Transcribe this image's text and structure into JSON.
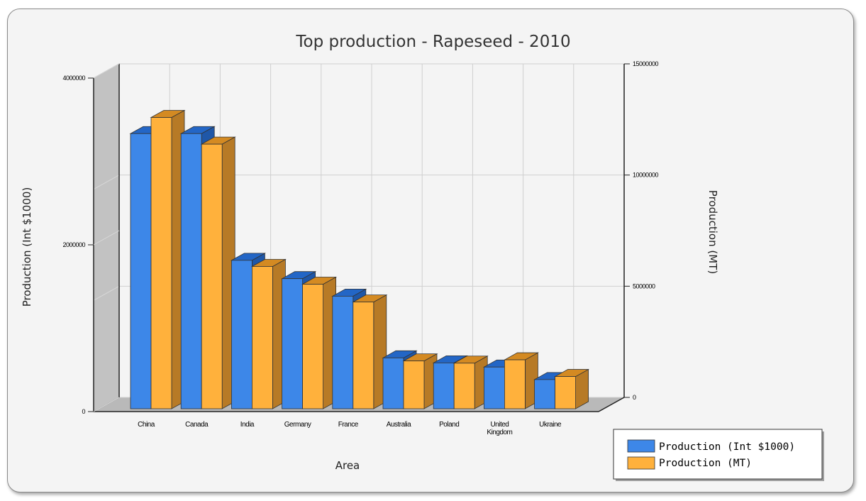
{
  "colors": {
    "series1_front": "#3d87e8",
    "series1_top": "#2366c6",
    "series1_side": "#1f57a8",
    "series2_front": "#ffb13c",
    "series2_top": "#d48a22",
    "series2_side": "#b77a26",
    "wall": "#c2c2c2",
    "floor": "#b9b9b9",
    "grid": "#cfcfcf"
  },
  "chart_data": {
    "type": "bar",
    "style": "3d-clustered",
    "title": "Top production - Rapeseed - 2010",
    "xlabel": "Area",
    "ylabel_left": "Production (Int $1000)",
    "ylabel_right": "Production (MT)",
    "categories": [
      "China",
      "Canada",
      "India",
      "Germany",
      "France",
      "Australia",
      "Poland",
      "United Kingdom",
      "Ukraine"
    ],
    "category_lines": [
      [
        "China"
      ],
      [
        "Canada"
      ],
      [
        "India"
      ],
      [
        "Germany"
      ],
      [
        "France"
      ],
      [
        "Australia"
      ],
      [
        "Poland"
      ],
      [
        "United",
        "Kingdom"
      ],
      [
        "Ukraine"
      ]
    ],
    "left_axis": {
      "min": 0,
      "max": 4000000,
      "ticks": [
        "0",
        "2000000",
        "4000000"
      ]
    },
    "right_axis": {
      "min": 0,
      "max": 15000000,
      "ticks": [
        "0",
        "5000000",
        "10000000",
        "15000000"
      ]
    },
    "series": [
      {
        "name": "Production (Int $1000)",
        "axis": "left",
        "values": [
          3300000,
          3300000,
          1780000,
          1560000,
          1350000,
          610000,
          550000,
          500000,
          350000
        ]
      },
      {
        "name": "Production (MT)",
        "axis": "right",
        "values": [
          13100000,
          11900000,
          6400000,
          5600000,
          4800000,
          2150000,
          2050000,
          2200000,
          1450000
        ]
      }
    ],
    "legend": "bottom-right",
    "grid": true
  }
}
